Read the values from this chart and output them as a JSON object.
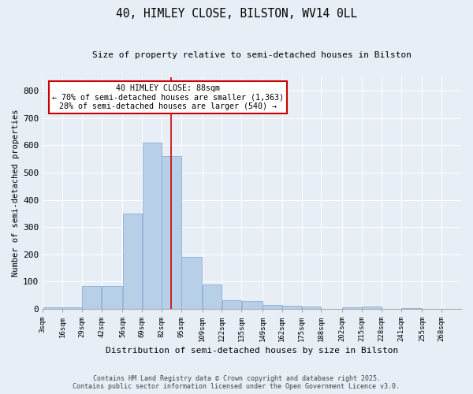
{
  "title": "40, HIMLEY CLOSE, BILSTON, WV14 0LL",
  "subtitle": "Size of property relative to semi-detached houses in Bilston",
  "xlabel": "Distribution of semi-detached houses by size in Bilston",
  "ylabel": "Number of semi-detached properties",
  "categories": [
    "3sqm",
    "16sqm",
    "29sqm",
    "42sqm",
    "56sqm",
    "69sqm",
    "82sqm",
    "95sqm",
    "109sqm",
    "122sqm",
    "135sqm",
    "149sqm",
    "162sqm",
    "175sqm",
    "188sqm",
    "202sqm",
    "215sqm",
    "228sqm",
    "241sqm",
    "255sqm",
    "268sqm"
  ],
  "bar_values": [
    4,
    5,
    82,
    82,
    350,
    610,
    560,
    190,
    90,
    30,
    28,
    15,
    12,
    8,
    0,
    5,
    8,
    0,
    3,
    0,
    0
  ],
  "bar_color": "#b8cfe8",
  "bar_edge_color": "#8aafd4",
  "bin_edges": [
    3,
    16,
    29,
    42,
    56,
    69,
    82,
    95,
    109,
    122,
    135,
    149,
    162,
    175,
    188,
    202,
    215,
    228,
    241,
    255,
    268,
    281
  ],
  "vline_color": "#cc0000",
  "vline_x": 88,
  "annotation_title": "40 HIMLEY CLOSE: 88sqm",
  "annotation_line1": "← 70% of semi-detached houses are smaller (1,363)",
  "annotation_line2": "28% of semi-detached houses are larger (540) →",
  "annotation_box_color": "#ffffff",
  "annotation_box_edge": "#cc0000",
  "ylim": [
    0,
    850
  ],
  "yticks": [
    0,
    100,
    200,
    300,
    400,
    500,
    600,
    700,
    800
  ],
  "background_color": "#e8eef6",
  "grid_color": "#ffffff",
  "footer_line1": "Contains HM Land Registry data © Crown copyright and database right 2025.",
  "footer_line2": "Contains public sector information licensed under the Open Government Licence v3.0."
}
